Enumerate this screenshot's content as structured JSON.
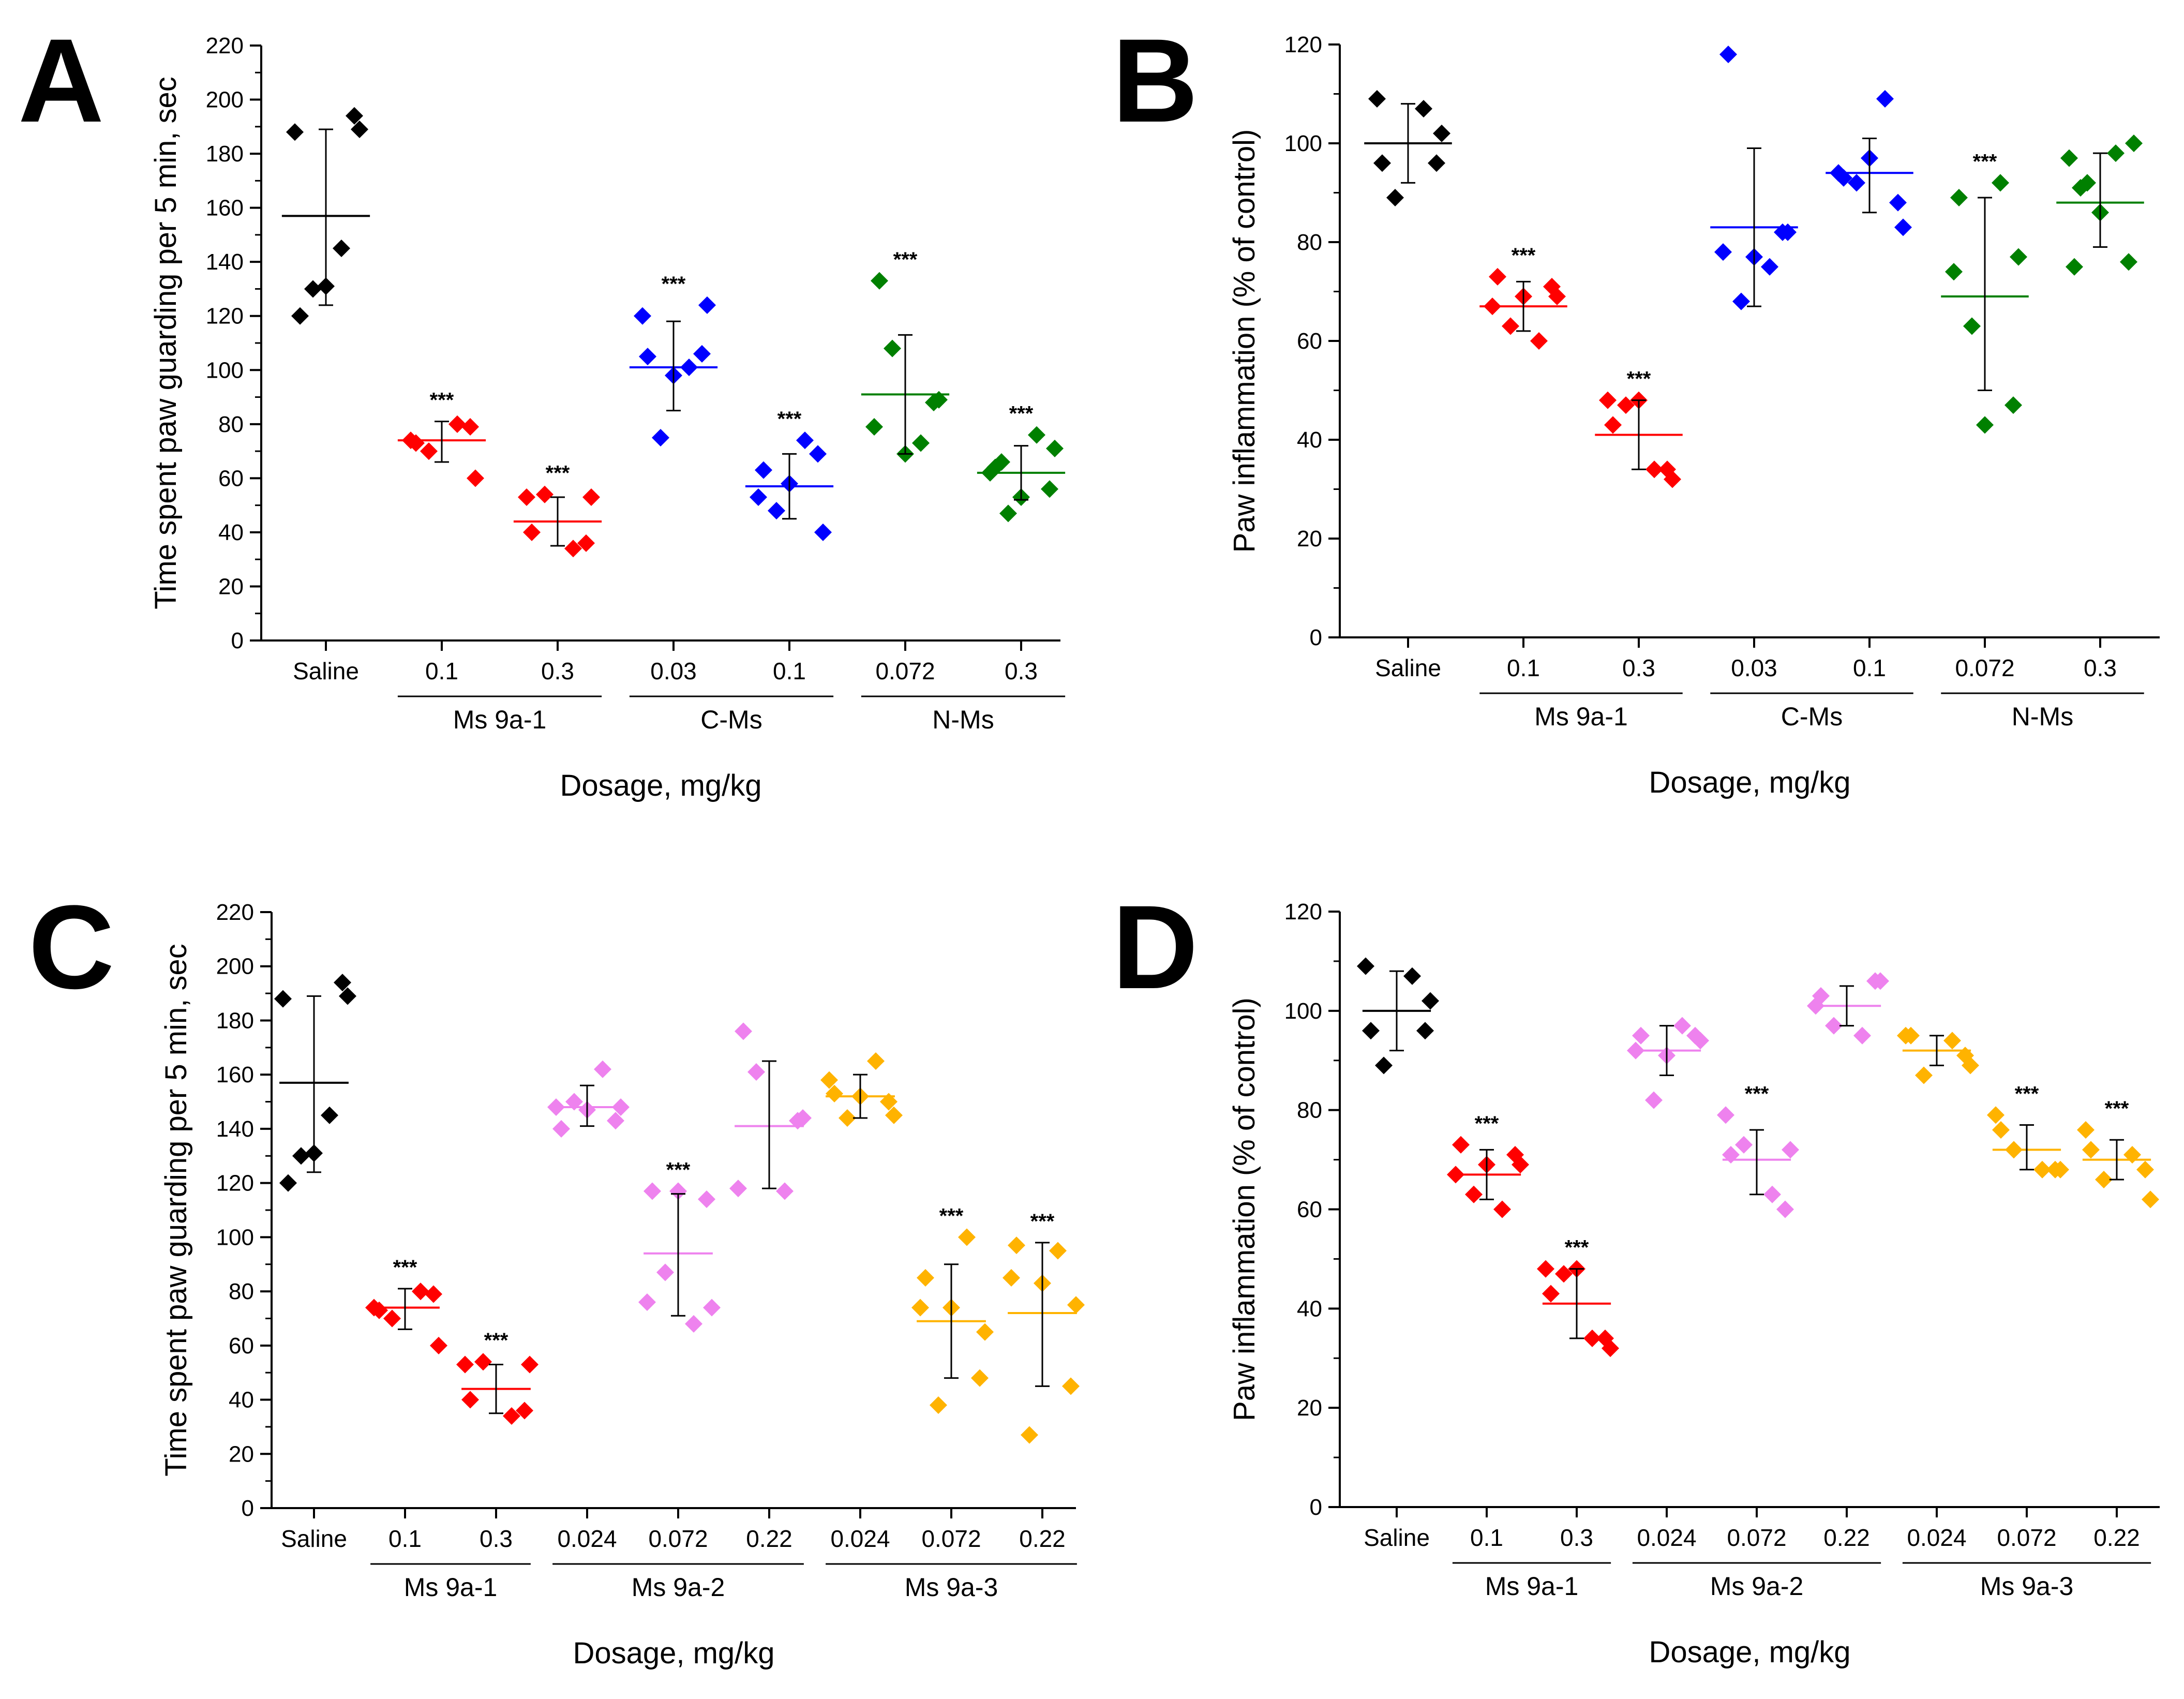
{
  "figure": {
    "xlabel_all": "Dosage, mg/kg"
  },
  "chart_data": [
    {
      "panel": "A",
      "type": "scatter",
      "ylabel": "Time spent paw guarding per 5 min, sec",
      "xlabel": "Dosage, mg/kg",
      "ylim": [
        0,
        220
      ],
      "yticks": [
        0,
        20,
        40,
        60,
        80,
        100,
        120,
        140,
        160,
        180,
        200,
        220
      ],
      "minor_ticks": true,
      "groups": [
        {
          "name": "Ms 9a-1",
          "from": 1,
          "to": 2
        },
        {
          "name": "C-Ms",
          "from": 3,
          "to": 4
        },
        {
          "name": "N-Ms",
          "from": 5,
          "to": 6
        }
      ],
      "categories": [
        {
          "label": "Saline",
          "color": "#000000",
          "mean": 157,
          "err_low": 124,
          "err_high": 189,
          "sig": "",
          "points": [
            188,
            194,
            130,
            145,
            120,
            189,
            131
          ]
        },
        {
          "label": "0.1",
          "color": "#ff0000",
          "mean": 74,
          "err_low": 66,
          "err_high": 81,
          "sig": "***",
          "points": [
            74,
            79,
            70,
            80,
            73,
            60
          ]
        },
        {
          "label": "0.3",
          "color": "#ff0000",
          "mean": 44,
          "err_low": 35,
          "err_high": 53,
          "sig": "***",
          "points": [
            53,
            36,
            54,
            34,
            40,
            53
          ]
        },
        {
          "label": "0.03",
          "color": "#0000ff",
          "mean": 101,
          "err_low": 85,
          "err_high": 118,
          "sig": "***",
          "points": [
            120,
            106,
            75,
            101,
            105,
            124,
            98
          ]
        },
        {
          "label": "0.1",
          "color": "#0000ff",
          "mean": 57,
          "err_low": 45,
          "err_high": 69,
          "sig": "***",
          "points": [
            53,
            69,
            48,
            74,
            63,
            40,
            58
          ]
        },
        {
          "label": "0.072",
          "color": "#008000",
          "mean": 91,
          "err_low": 69,
          "err_high": 113,
          "sig": "***",
          "points": [
            79,
            88,
            108,
            73,
            133,
            89,
            69
          ]
        },
        {
          "label": "0.3",
          "color": "#008000",
          "mean": 62,
          "err_low": 52,
          "err_high": 72,
          "sig": "***",
          "points": [
            62,
            56,
            47,
            76,
            64,
            71,
            53,
            66
          ]
        }
      ]
    },
    {
      "panel": "B",
      "type": "scatter",
      "ylabel": "Paw inflammation (% of control)",
      "xlabel": "Dosage, mg/kg",
      "ylim": [
        0,
        120
      ],
      "yticks": [
        0,
        20,
        40,
        60,
        80,
        100,
        120
      ],
      "minor_ticks": true,
      "groups": [
        {
          "name": "Ms 9a-1",
          "from": 1,
          "to": 2
        },
        {
          "name": "C-Ms",
          "from": 3,
          "to": 4
        },
        {
          "name": "N-Ms",
          "from": 5,
          "to": 6
        }
      ],
      "categories": [
        {
          "label": "Saline",
          "color": "#000000",
          "mean": 100,
          "err_low": 92,
          "err_high": 108,
          "sig": "",
          "points": [
            109,
            96,
            89,
            107,
            96,
            102
          ]
        },
        {
          "label": "0.1",
          "color": "#ff0000",
          "mean": 67,
          "err_low": 62,
          "err_high": 72,
          "sig": "***",
          "points": [
            67,
            71,
            63,
            60,
            73,
            69,
            69
          ]
        },
        {
          "label": "0.3",
          "color": "#ff0000",
          "mean": 41,
          "err_low": 34,
          "err_high": 48,
          "sig": "***",
          "points": [
            48,
            34,
            47,
            34,
            43,
            32,
            48
          ]
        },
        {
          "label": "0.03",
          "color": "#0000ff",
          "mean": 83,
          "err_low": 67,
          "err_high": 99,
          "sig": "",
          "points": [
            78,
            82,
            68,
            75,
            118,
            82,
            77
          ]
        },
        {
          "label": "0.1",
          "color": "#0000ff",
          "mean": 94,
          "err_low": 86,
          "err_high": 101,
          "sig": "",
          "points": [
            94,
            88,
            92,
            109,
            93,
            83,
            97
          ]
        },
        {
          "label": "0.072",
          "color": "#008000",
          "mean": 69,
          "err_low": 50,
          "err_high": 89,
          "sig": "***",
          "points": [
            74,
            47,
            63,
            92,
            89,
            77,
            43
          ]
        },
        {
          "label": "0.3",
          "color": "#008000",
          "mean": 88,
          "err_low": 79,
          "err_high": 98,
          "sig": "",
          "points": [
            97,
            76,
            92,
            98,
            75,
            100,
            86,
            91
          ]
        }
      ]
    },
    {
      "panel": "C",
      "type": "scatter",
      "ylabel": "Time spent paw guarding per 5 min, sec",
      "xlabel": "Dosage, mg/kg",
      "ylim": [
        0,
        220
      ],
      "yticks": [
        0,
        20,
        40,
        60,
        80,
        100,
        120,
        140,
        160,
        180,
        200,
        220
      ],
      "minor_ticks": true,
      "groups": [
        {
          "name": "Ms 9a-1",
          "from": 1,
          "to": 2
        },
        {
          "name": "Ms 9a-2",
          "from": 3,
          "to": 5
        },
        {
          "name": "Ms 9a-3",
          "from": 6,
          "to": 8
        }
      ],
      "categories": [
        {
          "label": "Saline",
          "color": "#000000",
          "mean": 157,
          "err_low": 124,
          "err_high": 189,
          "sig": "",
          "points": [
            188,
            194,
            130,
            145,
            120,
            189,
            131
          ]
        },
        {
          "label": "0.1",
          "color": "#ff0000",
          "mean": 74,
          "err_low": 66,
          "err_high": 81,
          "sig": "***",
          "points": [
            74,
            79,
            70,
            80,
            73,
            60
          ]
        },
        {
          "label": "0.3",
          "color": "#ff0000",
          "mean": 44,
          "err_low": 35,
          "err_high": 53,
          "sig": "***",
          "points": [
            53,
            36,
            54,
            34,
            40,
            53
          ]
        },
        {
          "label": "0.024",
          "color": "#ee82ee",
          "mean": 148,
          "err_low": 141,
          "err_high": 156,
          "sig": "",
          "points": [
            148,
            143,
            150,
            162,
            140,
            148,
            147
          ]
        },
        {
          "label": "0.072",
          "color": "#ee82ee",
          "mean": 94,
          "err_low": 71,
          "err_high": 116,
          "sig": "***",
          "points": [
            76,
            114,
            87,
            68,
            117,
            74,
            117
          ]
        },
        {
          "label": "0.22",
          "color": "#ee82ee",
          "mean": 141,
          "err_low": 118,
          "err_high": 165,
          "sig": "",
          "points": [
            118,
            143,
            161,
            117,
            176,
            144
          ]
        },
        {
          "label": "0.024",
          "color": "#ffb300",
          "mean": 152,
          "err_low": 144,
          "err_high": 160,
          "sig": "",
          "points": [
            158,
            150,
            144,
            165,
            153,
            145,
            152
          ]
        },
        {
          "label": "0.072",
          "color": "#ffb300",
          "mean": 69,
          "err_low": 48,
          "err_high": 90,
          "sig": "***",
          "points": [
            74,
            48,
            38,
            100,
            85,
            65,
            74
          ]
        },
        {
          "label": "0.22",
          "color": "#ffb300",
          "mean": 72,
          "err_low": 45,
          "err_high": 98,
          "sig": "***",
          "points": [
            85,
            45,
            27,
            95,
            97,
            75,
            83
          ]
        }
      ]
    },
    {
      "panel": "D",
      "type": "scatter",
      "ylabel": "Paw inflammation (% of control)",
      "xlabel": "Dosage, mg/kg",
      "ylim": [
        0,
        120
      ],
      "yticks": [
        0,
        20,
        40,
        60,
        80,
        100,
        120
      ],
      "minor_ticks": true,
      "groups": [
        {
          "name": "Ms 9a-1",
          "from": 1,
          "to": 2
        },
        {
          "name": "Ms 9a-2",
          "from": 3,
          "to": 5
        },
        {
          "name": "Ms 9a-3",
          "from": 6,
          "to": 8
        }
      ],
      "categories": [
        {
          "label": "Saline",
          "color": "#000000",
          "mean": 100,
          "err_low": 92,
          "err_high": 108,
          "sig": "",
          "points": [
            109,
            96,
            89,
            107,
            96,
            102
          ]
        },
        {
          "label": "0.1",
          "color": "#ff0000",
          "mean": 67,
          "err_low": 62,
          "err_high": 72,
          "sig": "***",
          "points": [
            67,
            71,
            63,
            60,
            73,
            69,
            69
          ]
        },
        {
          "label": "0.3",
          "color": "#ff0000",
          "mean": 41,
          "err_low": 34,
          "err_high": 48,
          "sig": "***",
          "points": [
            48,
            34,
            47,
            34,
            43,
            32,
            48
          ]
        },
        {
          "label": "0.024",
          "color": "#ee82ee",
          "mean": 92,
          "err_low": 87,
          "err_high": 97,
          "sig": "",
          "points": [
            92,
            95,
            82,
            97,
            95,
            94,
            91
          ]
        },
        {
          "label": "0.072",
          "color": "#ee82ee",
          "mean": 70,
          "err_low": 63,
          "err_high": 76,
          "sig": "***",
          "points": [
            79,
            60,
            73,
            63,
            71,
            72
          ]
        },
        {
          "label": "0.22",
          "color": "#ee82ee",
          "mean": 101,
          "err_low": 97,
          "err_high": 105,
          "sig": "",
          "points": [
            101,
            106,
            97,
            95,
            103,
            106
          ]
        },
        {
          "label": "0.024",
          "color": "#ffb300",
          "mean": 92,
          "err_low": 89,
          "err_high": 95,
          "sig": "",
          "points": [
            95,
            91,
            87,
            94,
            95,
            89
          ]
        },
        {
          "label": "0.072",
          "color": "#ffb300",
          "mean": 72,
          "err_low": 68,
          "err_high": 77,
          "sig": "***",
          "points": [
            79,
            68,
            72,
            68,
            76,
            68
          ]
        },
        {
          "label": "0.22",
          "color": "#ffb300",
          "mean": 70,
          "err_low": 66,
          "err_high": 74,
          "sig": "***",
          "points": [
            76,
            68,
            66,
            71,
            72,
            62
          ]
        }
      ]
    }
  ]
}
